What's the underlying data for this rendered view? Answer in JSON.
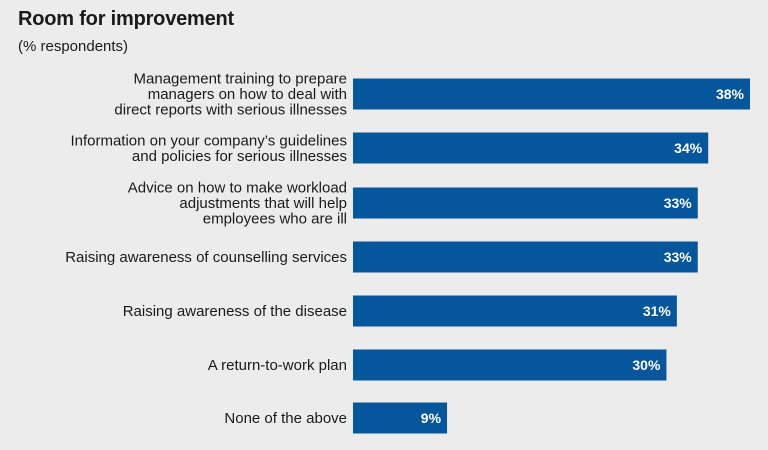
{
  "chart_data": {
    "type": "bar",
    "orientation": "horizontal",
    "title": "Room for improvement",
    "subtitle": "(% respondents)",
    "categories": [
      [
        "Management training to prepare",
        "managers on how to deal with",
        "direct reports with serious illnesses"
      ],
      [
        "Information on your company’s guidelines",
        "and policies for serious illnesses"
      ],
      [
        "Advice on how to make workload",
        "adjustments that will help",
        "employees who are ill"
      ],
      [
        "Raising awareness of counselling services"
      ],
      [
        "Raising awareness of the disease"
      ],
      [
        "A return-to-work plan"
      ],
      [
        "None of the above"
      ]
    ],
    "values": [
      38,
      34,
      33,
      33,
      31,
      30,
      9
    ],
    "value_labels": [
      "38%",
      "34%",
      "33%",
      "33%",
      "31%",
      "30%",
      "9%"
    ],
    "bar_color": "#06569b",
    "value_label_color": "#ffffff",
    "background_color": "#ececec",
    "xlim": [
      0,
      38
    ],
    "grid": false,
    "legend": "none"
  }
}
